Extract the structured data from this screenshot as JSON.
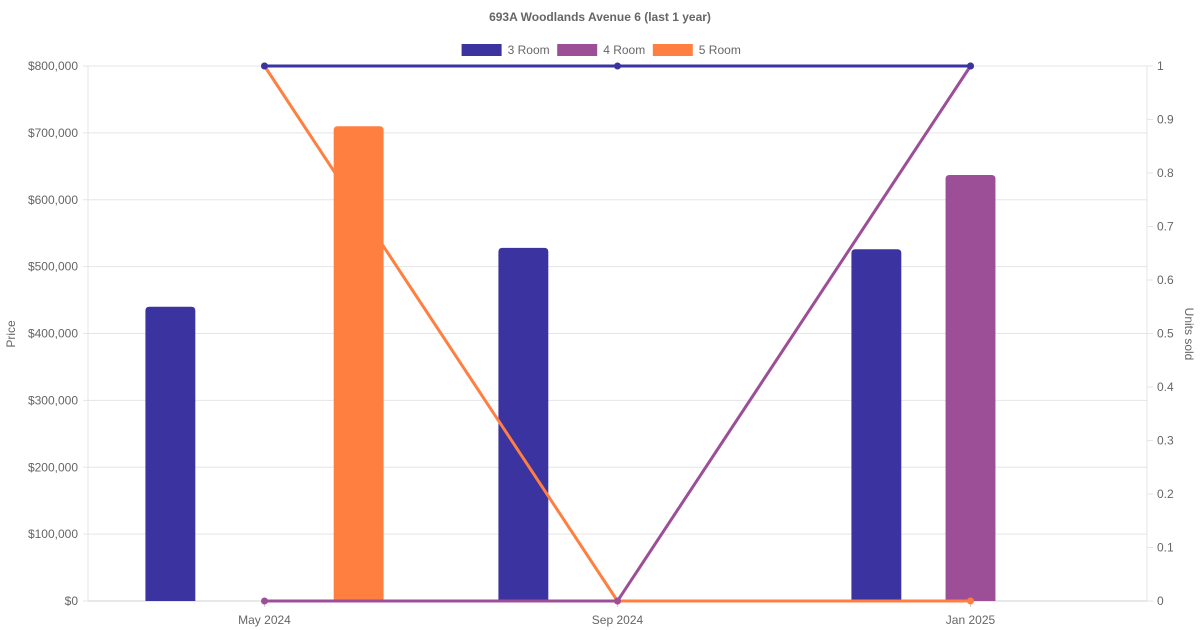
{
  "chart_data": {
    "type": "bar",
    "title": "693A Woodlands Avenue 6 (last 1 year)",
    "categories": [
      "May 2024",
      "Sep 2024",
      "Jan 2025"
    ],
    "ylabel": "Price",
    "y2label": "Units sold",
    "ylim": [
      0,
      800000
    ],
    "y2lim": [
      0,
      1
    ],
    "yticks": [
      "$0",
      "$100,000",
      "$200,000",
      "$300,000",
      "$400,000",
      "$500,000",
      "$600,000",
      "$700,000",
      "$800,000"
    ],
    "y2ticks": [
      "0",
      "0.1",
      "0.2",
      "0.3",
      "0.4",
      "0.5",
      "0.6",
      "0.7",
      "0.8",
      "0.9",
      "1"
    ],
    "grid": true,
    "legend_position": "top",
    "series": [
      {
        "name": "3 Room",
        "color": "#3a33a0",
        "price": [
          440000,
          528000,
          526000
        ],
        "units": [
          1,
          1,
          1
        ]
      },
      {
        "name": "4 Room",
        "color": "#9c4f96",
        "price": [
          null,
          null,
          637000
        ],
        "units": [
          0,
          0,
          1
        ]
      },
      {
        "name": "5 Room",
        "color": "#ff7f41",
        "price": [
          710000,
          null,
          null
        ],
        "units": [
          1,
          0,
          0
        ]
      }
    ]
  }
}
